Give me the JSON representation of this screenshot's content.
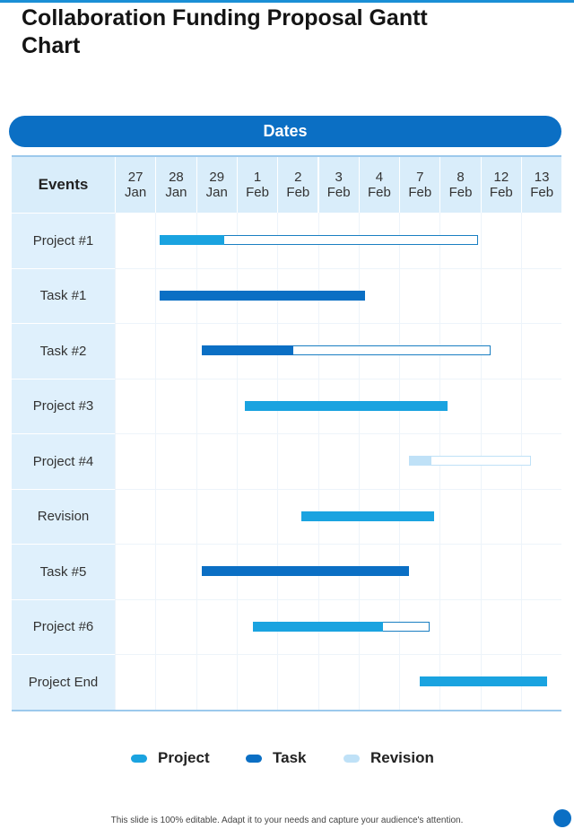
{
  "page": {
    "title": "Collaboration Funding Proposal Gantt Chart",
    "dates_header": "Dates",
    "events_header": "Events",
    "footer": "This slide is 100% editable. Adapt it to your needs and capture your audience's attention."
  },
  "chart_data": {
    "type": "gantt",
    "title": "Collaboration Funding Proposal Gantt Chart",
    "dates": [
      {
        "day": "27",
        "month": "Jan"
      },
      {
        "day": "28",
        "month": "Jan"
      },
      {
        "day": "29",
        "month": "Jan"
      },
      {
        "day": "1",
        "month": "Feb"
      },
      {
        "day": "2",
        "month": "Feb"
      },
      {
        "day": "3",
        "month": "Feb"
      },
      {
        "day": "4",
        "month": "Feb"
      },
      {
        "day": "7",
        "month": "Feb"
      },
      {
        "day": "8",
        "month": "Feb"
      },
      {
        "day": "12",
        "month": "Feb"
      },
      {
        "day": "13",
        "month": "Feb"
      }
    ],
    "events": [
      {
        "label": "Project #1",
        "category": "Project",
        "start": 1.1,
        "end": 8.95,
        "progress_end": 2.7
      },
      {
        "label": "Task #1",
        "category": "Task",
        "start": 1.1,
        "end": 6.15,
        "progress_end": 6.15
      },
      {
        "label": "Task #2",
        "category": "Task",
        "start": 2.15,
        "end": 9.25,
        "progress_end": 4.4
      },
      {
        "label": "Project #3",
        "category": "Project",
        "start": 3.2,
        "end": 8.2,
        "progress_end": 8.2
      },
      {
        "label": "Project #4",
        "category": "Revision",
        "start": 7.25,
        "end": 10.25,
        "progress_end": 7.8
      },
      {
        "label": "Revision",
        "category": "Project",
        "start": 4.6,
        "end": 7.85,
        "progress_end": 7.85
      },
      {
        "label": "Task #5",
        "category": "Task",
        "start": 2.15,
        "end": 7.25,
        "progress_end": 7.25
      },
      {
        "label": "Project #6",
        "category": "Project",
        "start": 3.4,
        "end": 7.75,
        "progress_end": 6.6
      },
      {
        "label": "Project End",
        "category": "Project",
        "start": 7.5,
        "end": 10.65,
        "progress_end": 10.65
      }
    ],
    "legend": [
      {
        "label": "Project",
        "color": "#1aa3e0"
      },
      {
        "label": "Task",
        "color": "#0b6fc4"
      },
      {
        "label": "Revision",
        "color": "#bfe1f7"
      }
    ]
  }
}
